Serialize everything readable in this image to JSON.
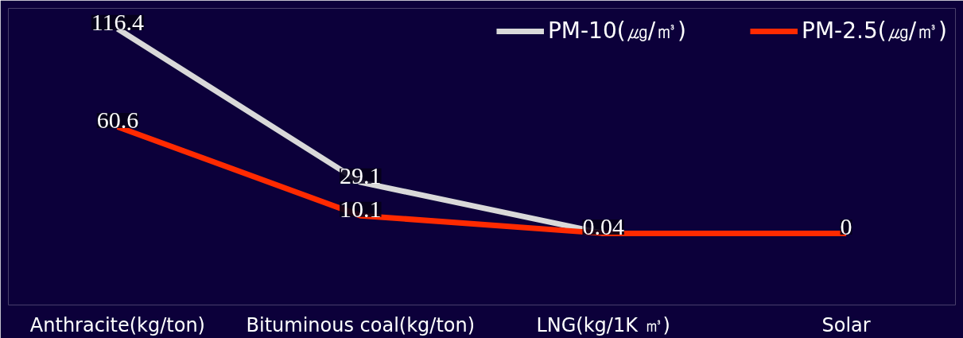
{
  "chart_data": {
    "type": "line",
    "categories": [
      "Anthracite(kg/ton)",
      "Bituminous coal(kg/ton)",
      "LNG(kg/1K ㎥)",
      "Solar"
    ],
    "series": [
      {
        "name": "PM-10(㎍/㎥)",
        "color": "#d9d9d9",
        "values": [
          116.4,
          29.1,
          0.04,
          0
        ],
        "value_labels": [
          "116.4",
          "29.1",
          null,
          null
        ]
      },
      {
        "name": "PM-2.5(㎍/㎥)",
        "color": "#ff2a00",
        "values": [
          60.6,
          10.1,
          0.04,
          0
        ],
        "value_labels": [
          "60.6",
          "10.1",
          "0.04",
          "0"
        ]
      }
    ],
    "legend": "top right",
    "grid": false,
    "tick_labels": "x",
    "marker": "none",
    "line_style": "solid"
  }
}
